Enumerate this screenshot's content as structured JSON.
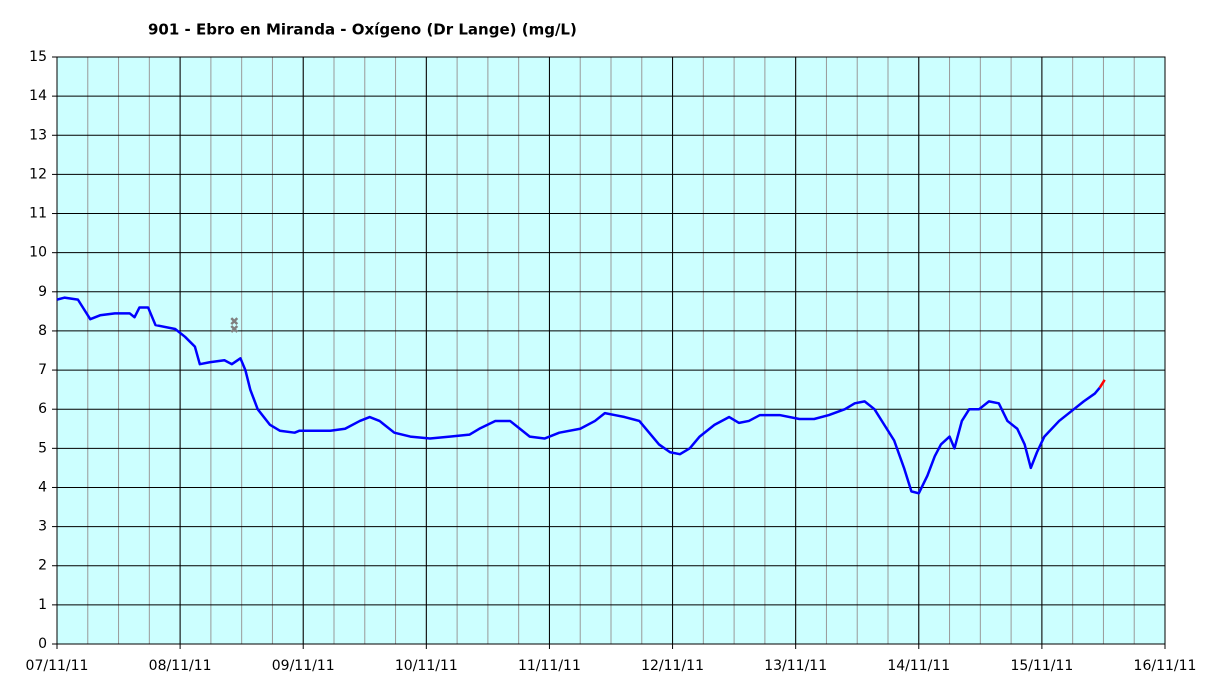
{
  "chart_data": {
    "type": "line",
    "title": "901 - Ebro en Miranda - Oxígeno (Dr Lange) (mg/L)",
    "xlim": [
      0,
      9
    ],
    "xticks": [
      {
        "value": 0,
        "label": "07/11/11"
      },
      {
        "value": 1,
        "label": "08/11/11"
      },
      {
        "value": 2,
        "label": "09/11/11"
      },
      {
        "value": 3,
        "label": "10/11/11"
      },
      {
        "value": 4,
        "label": "11/11/11"
      },
      {
        "value": 5,
        "label": "12/11/11"
      },
      {
        "value": 6,
        "label": "13/11/11"
      },
      {
        "value": 7,
        "label": "14/11/11"
      },
      {
        "value": 8,
        "label": "15/11/11"
      },
      {
        "value": 9,
        "label": "16/11/11"
      }
    ],
    "ylim": [
      0,
      15
    ],
    "yticks": [
      0,
      1,
      2,
      3,
      4,
      5,
      6,
      7,
      8,
      9,
      10,
      11,
      12,
      13,
      14,
      15
    ],
    "grid": true,
    "minor_grid_step": 0.25,
    "background": "#ccffff",
    "series": [
      {
        "color": "#0000ff",
        "marker": "line",
        "x": [
          0,
          0.06,
          0.17,
          0.23,
          0.27,
          0.35,
          0.47,
          0.59,
          0.63,
          0.67,
          0.74,
          0.8,
          0.96,
          1.04,
          1.12,
          1.16,
          1.24,
          1.36,
          1.42,
          1.49,
          1.53,
          1.57,
          1.63,
          1.73,
          1.81,
          1.93,
          1.97,
          2.22,
          2.34,
          2.46,
          2.54,
          2.62,
          2.74,
          2.87,
          3.03,
          3.19,
          3.35,
          3.43,
          3.56,
          3.68,
          3.76,
          3.84,
          3.96,
          4.08,
          4.25,
          4.37,
          4.45,
          4.53,
          4.61,
          4.73,
          4.81,
          4.89,
          4.98,
          5.06,
          5.14,
          5.22,
          5.34,
          5.46,
          5.54,
          5.62,
          5.71,
          5.87,
          6.03,
          6.15,
          6.27,
          6.4,
          6.48,
          6.56,
          6.64,
          6.72,
          6.8,
          6.88,
          6.94,
          7.0,
          7.07,
          7.13,
          7.18,
          7.25,
          7.29,
          7.35,
          7.41,
          7.49,
          7.57,
          7.65,
          7.72,
          7.8,
          7.86,
          7.91,
          7.96,
          8.02,
          8.14,
          8.26,
          8.34,
          8.43,
          8.47
        ],
        "values": [
          8.8,
          8.85,
          8.8,
          8.5,
          8.3,
          8.4,
          8.45,
          8.45,
          8.35,
          8.6,
          8.6,
          8.15,
          8.05,
          7.85,
          7.6,
          7.15,
          7.2,
          7.25,
          7.15,
          7.3,
          7.0,
          6.5,
          6.0,
          5.6,
          5.45,
          5.4,
          5.45,
          5.45,
          5.5,
          5.7,
          5.8,
          5.7,
          5.4,
          5.3,
          5.25,
          5.3,
          5.35,
          5.5,
          5.7,
          5.7,
          5.5,
          5.3,
          5.25,
          5.4,
          5.5,
          5.7,
          5.9,
          5.85,
          5.8,
          5.7,
          5.4,
          5.1,
          4.9,
          4.85,
          5.0,
          5.3,
          5.6,
          5.8,
          5.65,
          5.7,
          5.85,
          5.85,
          5.75,
          5.75,
          5.85,
          6.0,
          6.15,
          6.2,
          6.0,
          5.6,
          5.2,
          4.5,
          3.9,
          3.85,
          4.3,
          4.8,
          5.1,
          5.3,
          5.0,
          5.7,
          6.0,
          6.0,
          6.2,
          6.15,
          5.7,
          5.5,
          5.1,
          4.5,
          4.9,
          5.3,
          5.7,
          6.0,
          6.2,
          6.4,
          6.55
        ]
      },
      {
        "color": "#ff0000",
        "marker": "line",
        "x": [
          8.47,
          8.51
        ],
        "values": [
          6.55,
          6.75
        ]
      },
      {
        "color": "#808080",
        "marker": "cross",
        "x": [
          1.44,
          1.44
        ],
        "values": [
          8.25,
          8.05
        ]
      }
    ]
  }
}
